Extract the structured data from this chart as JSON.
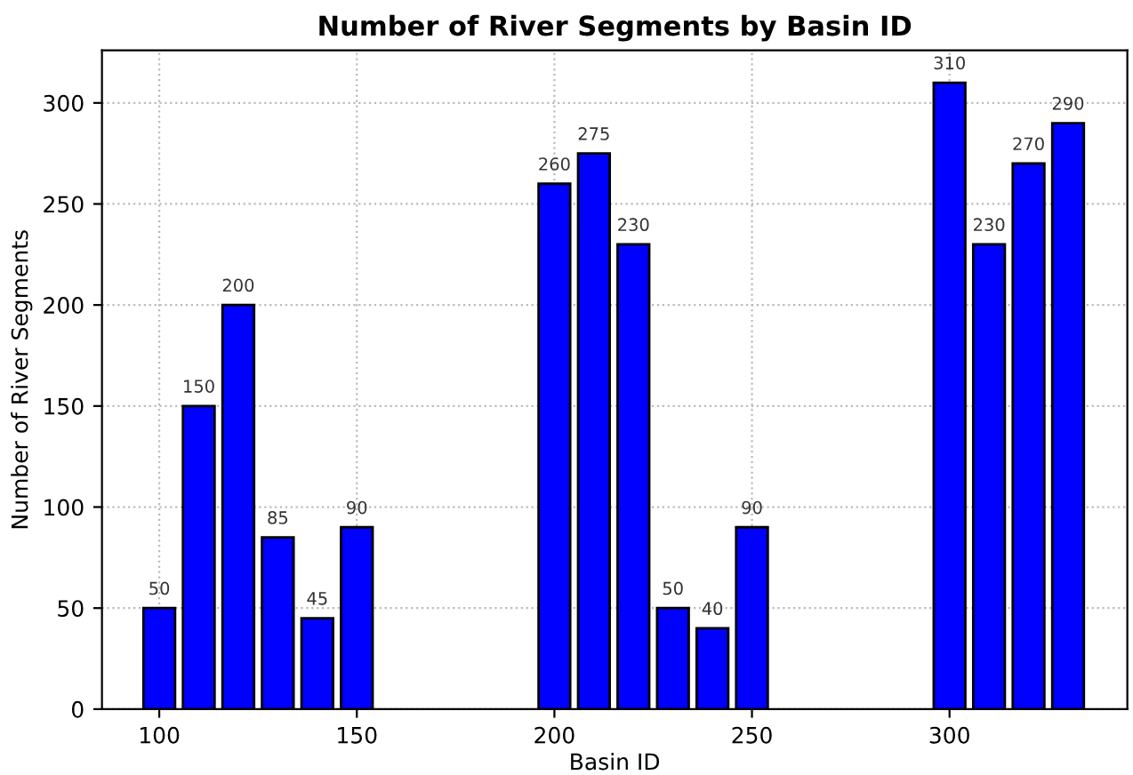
{
  "chart_data": {
    "type": "bar",
    "title": "Number of River Segments by Basin ID",
    "xlabel": "Basin ID",
    "ylabel": "Number of River Segments",
    "x": [
      100,
      110,
      120,
      130,
      140,
      150,
      200,
      210,
      220,
      230,
      240,
      250,
      300,
      310,
      320,
      330
    ],
    "values": [
      50,
      150,
      200,
      85,
      45,
      90,
      260,
      275,
      230,
      50,
      40,
      90,
      310,
      230,
      270,
      290
    ],
    "color": "#0000ff",
    "data_labels": true,
    "xlim": [
      85.5,
      345
    ],
    "xticks": [
      100,
      150,
      200,
      250,
      300
    ],
    "ylim": [
      0,
      326
    ],
    "yticks": [
      0,
      50,
      100,
      150,
      200,
      250,
      300
    ],
    "grid": true
  }
}
